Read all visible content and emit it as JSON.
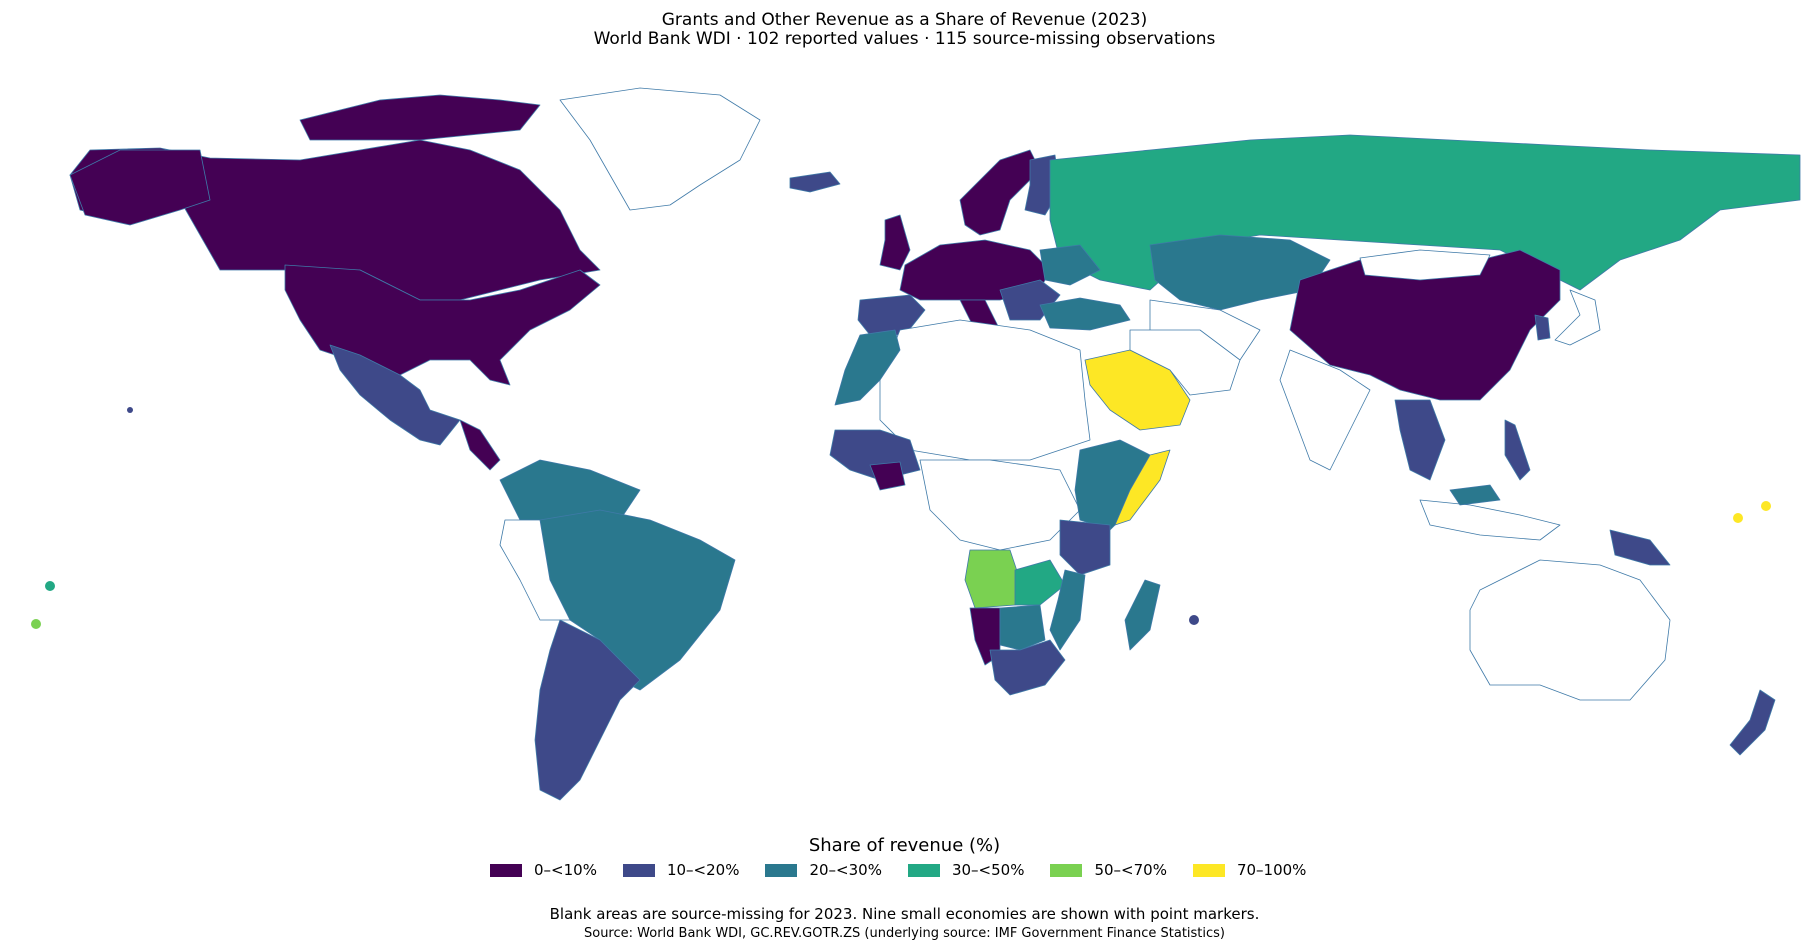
{
  "title": "Grants and Other Revenue as a Share of Revenue (2023)",
  "subtitle": "World Bank WDI · 102 reported values · 115 source-missing observations",
  "legend": {
    "title": "Share of revenue (%)",
    "items": [
      {
        "label": "0–<10%",
        "color": "#440154"
      },
      {
        "label": "10–<20%",
        "color": "#3e4989"
      },
      {
        "label": "20–<30%",
        "color": "#2a788e"
      },
      {
        "label": "30–<50%",
        "color": "#22a884"
      },
      {
        "label": "50–<70%",
        "color": "#7ad151"
      },
      {
        "label": "70–100%",
        "color": "#fde725"
      }
    ]
  },
  "note": "Blank areas are source-missing for 2023. Nine small economies are shown with point markers.",
  "source": "Source: World Bank WDI, GC.REV.GOTR.ZS (underlying source: IMF Government Finance Statistics)",
  "regions": [
    {
      "name": "Canada",
      "bin": 0
    },
    {
      "name": "United States",
      "bin": 0
    },
    {
      "name": "Mexico",
      "bin": 1
    },
    {
      "name": "Brazil",
      "bin": 2
    },
    {
      "name": "Argentina",
      "bin": 1
    },
    {
      "name": "Russia",
      "bin": 3
    },
    {
      "name": "Kazakhstan",
      "bin": 2
    },
    {
      "name": "China",
      "bin": 0
    },
    {
      "name": "Saudi Arabia",
      "bin": 5
    },
    {
      "name": "Somalia",
      "bin": 5
    },
    {
      "name": "Angola",
      "bin": 4
    },
    {
      "name": "Namibia",
      "bin": 0
    },
    {
      "name": "South Africa",
      "bin": 1
    },
    {
      "name": "Madagascar",
      "bin": 2
    },
    {
      "name": "New Zealand",
      "bin": 1
    },
    {
      "name": "Papua New Guinea",
      "bin": 1
    },
    {
      "name": "Morocco",
      "bin": 2
    },
    {
      "name": "Spain",
      "bin": 1
    },
    {
      "name": "Western Europe",
      "bin": 0
    },
    {
      "name": "Scandinavia",
      "bin": 0
    },
    {
      "name": "Turkey",
      "bin": 2
    },
    {
      "name": "Kenya/Ethiopia",
      "bin": 2
    },
    {
      "name": "Tanzania",
      "bin": 1
    },
    {
      "name": "Zambia",
      "bin": 3
    },
    {
      "name": "Mozambique",
      "bin": 2
    }
  ]
}
